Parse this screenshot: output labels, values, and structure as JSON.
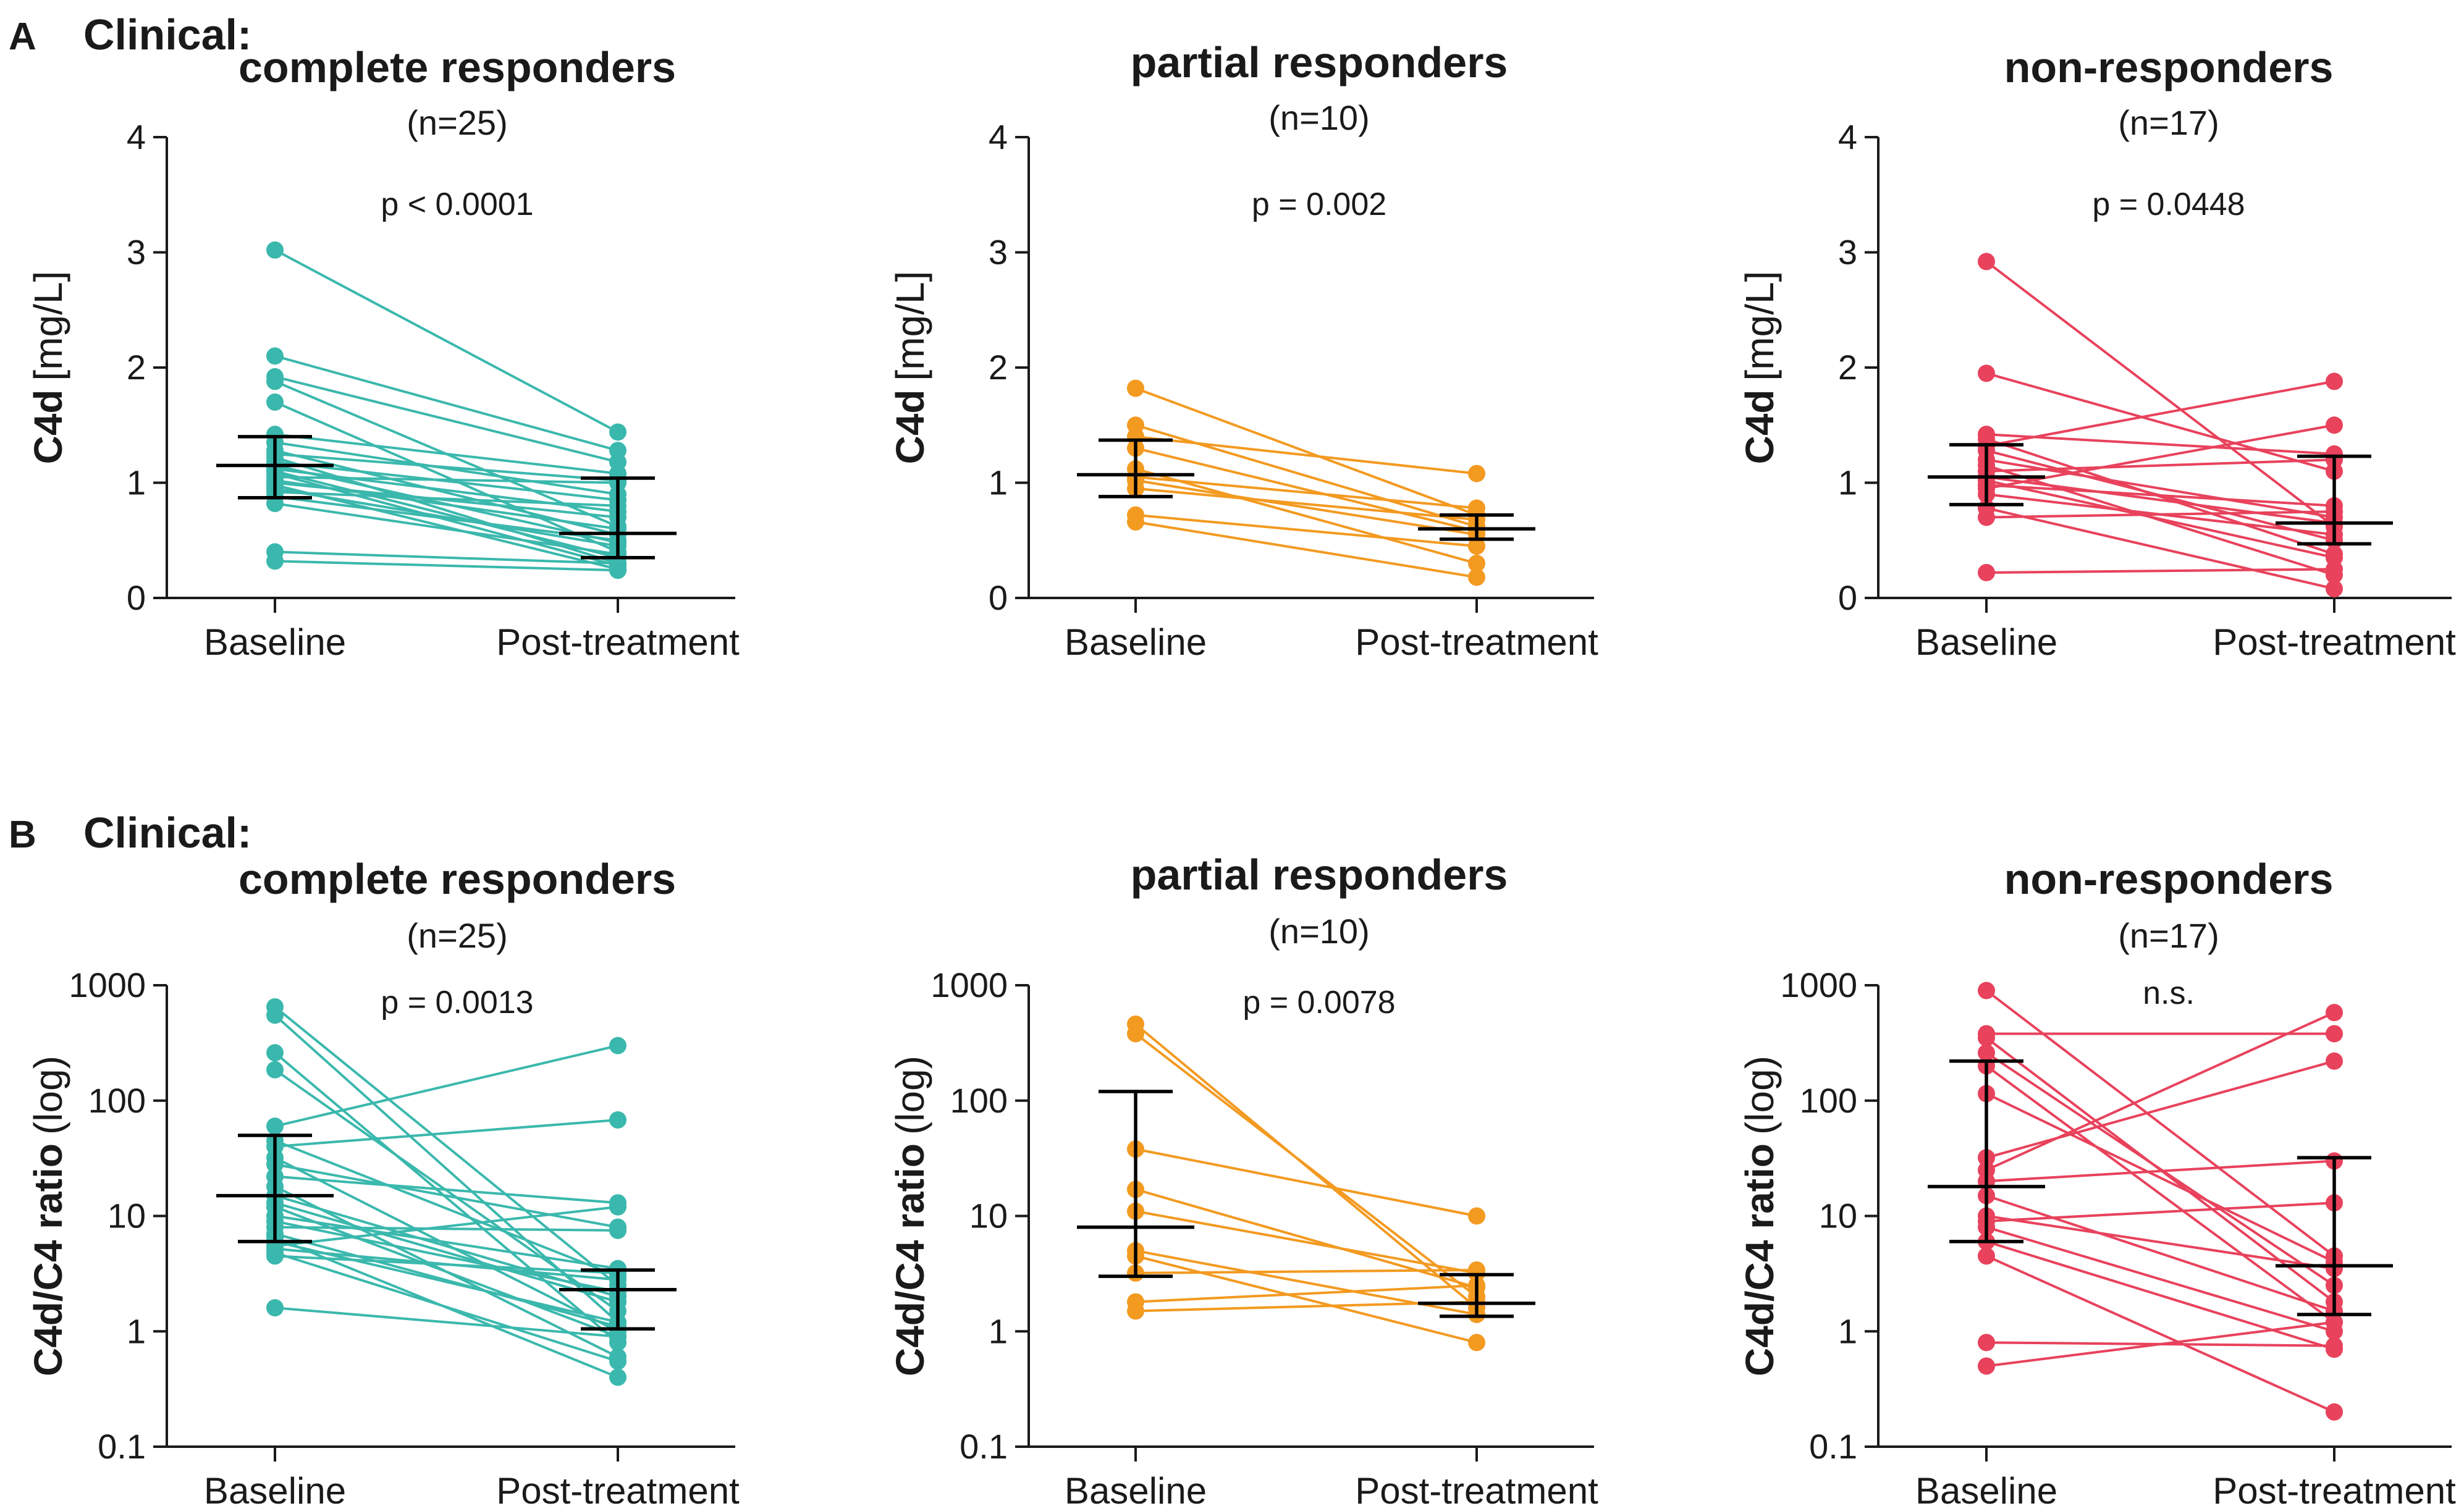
{
  "figure": {
    "panel_a": {
      "letter": "A",
      "heading": "Clinical:"
    },
    "panel_b": {
      "letter": "B",
      "heading": "Clinical:"
    }
  },
  "chart_data": [
    {
      "type": "paired_dot_line",
      "panel": "A",
      "title": "complete responders",
      "n_label": "(n=25)",
      "annotation": "p < 0.0001",
      "ylabel": "C4d [mg/L]",
      "ylabel_parts": [
        "C4d",
        "[mg/L]"
      ],
      "yscale": "linear",
      "ylim": [
        0,
        4
      ],
      "yticks": [
        0,
        1,
        2,
        3,
        4
      ],
      "ytick_labels": [
        "0",
        "1",
        "2",
        "3",
        "4"
      ],
      "categories": [
        "Baseline",
        "Post-treatment"
      ],
      "color": "#3bb8ad",
      "pairs": [
        [
          3.02,
          1.44
        ],
        [
          2.1,
          1.28
        ],
        [
          1.92,
          1.18
        ],
        [
          1.88,
          0.62
        ],
        [
          1.7,
          0.4
        ],
        [
          1.42,
          1.08
        ],
        [
          1.35,
          0.9
        ],
        [
          1.28,
          0.55
        ],
        [
          1.25,
          1.02
        ],
        [
          1.22,
          0.3
        ],
        [
          1.18,
          0.85
        ],
        [
          1.15,
          0.48
        ],
        [
          1.12,
          0.75
        ],
        [
          1.1,
          0.35
        ],
        [
          1.08,
          0.28
        ],
        [
          1.05,
          1.0
        ],
        [
          1.02,
          0.6
        ],
        [
          1.0,
          0.7
        ],
        [
          0.98,
          0.25
        ],
        [
          0.95,
          0.45
        ],
        [
          0.92,
          0.8
        ],
        [
          0.88,
          0.5
        ],
        [
          0.82,
          0.38
        ],
        [
          0.4,
          0.3
        ],
        [
          0.32,
          0.24
        ]
      ],
      "stats": [
        {
          "median": 1.15,
          "q1": 0.87,
          "q3": 1.4
        },
        {
          "median": 0.56,
          "q1": 0.35,
          "q3": 1.04
        }
      ]
    },
    {
      "type": "paired_dot_line",
      "panel": "A",
      "title": "partial responders",
      "n_label": "(n=10)",
      "annotation": "p = 0.002",
      "ylabel": "C4d [mg/L]",
      "ylabel_parts": [
        "C4d",
        "[mg/L]"
      ],
      "yscale": "linear",
      "ylim": [
        0,
        4
      ],
      "yticks": [
        0,
        1,
        2,
        3,
        4
      ],
      "ytick_labels": [
        "0",
        "1",
        "2",
        "3",
        "4"
      ],
      "categories": [
        "Baseline",
        "Post-treatment"
      ],
      "color": "#f39a21",
      "pairs": [
        [
          1.82,
          0.72
        ],
        [
          1.5,
          0.62
        ],
        [
          1.4,
          1.08
        ],
        [
          1.3,
          0.58
        ],
        [
          1.12,
          0.3
        ],
        [
          1.05,
          0.78
        ],
        [
          1.02,
          0.55
        ],
        [
          0.95,
          0.68
        ],
        [
          0.72,
          0.45
        ],
        [
          0.66,
          0.18
        ]
      ],
      "stats": [
        {
          "median": 1.07,
          "q1": 0.88,
          "q3": 1.37
        },
        {
          "median": 0.6,
          "q1": 0.51,
          "q3": 0.72
        }
      ]
    },
    {
      "type": "paired_dot_line",
      "panel": "A",
      "title": "non-responders",
      "n_label": "(n=17)",
      "annotation": "p = 0.0448",
      "ylabel": "C4d [mg/L]",
      "ylabel_parts": [
        "C4d",
        "[mg/L]"
      ],
      "yscale": "linear",
      "ylim": [
        0,
        4
      ],
      "yticks": [
        0,
        1,
        2,
        3,
        4
      ],
      "ytick_labels": [
        "0",
        "1",
        "2",
        "3",
        "4"
      ],
      "categories": [
        "Baseline",
        "Post-treatment"
      ],
      "color": "#e8425c",
      "pairs": [
        [
          2.92,
          0.62
        ],
        [
          1.95,
          1.1
        ],
        [
          1.42,
          1.25
        ],
        [
          1.38,
          0.38
        ],
        [
          1.32,
          1.88
        ],
        [
          1.28,
          0.5
        ],
        [
          1.2,
          0.7
        ],
        [
          1.15,
          0.2
        ],
        [
          1.1,
          1.2
        ],
        [
          1.05,
          0.65
        ],
        [
          1.02,
          0.35
        ],
        [
          0.98,
          0.8
        ],
        [
          0.95,
          1.5
        ],
        [
          0.9,
          0.55
        ],
        [
          0.78,
          0.08
        ],
        [
          0.7,
          0.75
        ],
        [
          0.22,
          0.25
        ]
      ],
      "stats": [
        {
          "median": 1.05,
          "q1": 0.81,
          "q3": 1.33
        },
        {
          "median": 0.65,
          "q1": 0.47,
          "q3": 1.23
        }
      ]
    },
    {
      "type": "paired_dot_line",
      "panel": "B",
      "title": "complete responders",
      "n_label": "(n=25)",
      "annotation": "p = 0.0013",
      "ylabel": "C4d/C4 ratio (log)",
      "ylabel_parts": [
        "C4d/C4 ratio",
        "(log)"
      ],
      "yscale": "log",
      "ylim": [
        0.1,
        1000
      ],
      "yticks": [
        0.1,
        1,
        10,
        100,
        1000
      ],
      "ytick_labels": [
        "0.1",
        "1",
        "10",
        "100",
        "1000"
      ],
      "categories": [
        "Baseline",
        "Post-treatment"
      ],
      "color": "#3bb8ad",
      "pairs": [
        [
          650,
          2.5
        ],
        [
          550,
          1.2
        ],
        [
          260,
          0.8
        ],
        [
          185,
          1.5
        ],
        [
          60,
          300
        ],
        [
          45,
          3.0
        ],
        [
          40,
          68
        ],
        [
          32,
          1.0
        ],
        [
          28,
          8.0
        ],
        [
          22,
          13
        ],
        [
          18,
          0.6
        ],
        [
          15,
          2.0
        ],
        [
          13,
          1.8
        ],
        [
          12,
          0.9
        ],
        [
          10,
          3.5
        ],
        [
          9,
          2.2
        ],
        [
          8,
          7.5
        ],
        [
          7,
          1.1
        ],
        [
          6.5,
          0.4
        ],
        [
          6,
          1.2
        ],
        [
          5.5,
          12
        ],
        [
          5.2,
          2.8
        ],
        [
          4.8,
          0.55
        ],
        [
          4.5,
          3.2
        ],
        [
          1.6,
          0.9
        ]
      ],
      "stats": [
        {
          "median": 15,
          "q1": 6,
          "q3": 50
        },
        {
          "median": 2.3,
          "q1": 1.05,
          "q3": 3.4
        }
      ]
    },
    {
      "type": "paired_dot_line",
      "panel": "B",
      "title": "partial responders",
      "n_label": "(n=10)",
      "annotation": "p = 0.0078",
      "ylabel": "C4d/C4 ratio (log)",
      "ylabel_parts": [
        "C4d/C4 ratio",
        "(log)"
      ],
      "yscale": "log",
      "ylim": [
        0.1,
        1000
      ],
      "yticks": [
        0.1,
        1,
        10,
        100,
        1000
      ],
      "ytick_labels": [
        "0.1",
        "1",
        "10",
        "100",
        "1000"
      ],
      "categories": [
        "Baseline",
        "Post-treatment"
      ],
      "color": "#f39a21",
      "pairs": [
        [
          460,
          1.6
        ],
        [
          380,
          2.0
        ],
        [
          38,
          10
        ],
        [
          17,
          2.4
        ],
        [
          11,
          3.2
        ],
        [
          5,
          1.4
        ],
        [
          4.5,
          0.8
        ],
        [
          3.2,
          3.4
        ],
        [
          1.8,
          2.5
        ],
        [
          1.5,
          1.8
        ]
      ],
      "stats": [
        {
          "median": 8,
          "q1": 3,
          "q3": 120
        },
        {
          "median": 1.75,
          "q1": 1.35,
          "q3": 3.1
        }
      ]
    },
    {
      "type": "paired_dot_line",
      "panel": "B",
      "title": "non-responders",
      "n_label": "(n=17)",
      "annotation": "n.s.",
      "ylabel": "C4d/C4 ratio (log)",
      "ylabel_parts": [
        "C4d/C4 ratio",
        "(log)"
      ],
      "yscale": "log",
      "ylim": [
        0.1,
        1000
      ],
      "yticks": [
        0.1,
        1,
        10,
        100,
        1000
      ],
      "ytick_labels": [
        "0.1",
        "1",
        "10",
        "100",
        "1000"
      ],
      "categories": [
        "Baseline",
        "Post-treatment"
      ],
      "color": "#e8425c",
      "pairs": [
        [
          900,
          4.5
        ],
        [
          380,
          380
        ],
        [
          350,
          1.8
        ],
        [
          260,
          2.5
        ],
        [
          200,
          1.2
        ],
        [
          115,
          4.0
        ],
        [
          32,
          220
        ],
        [
          25,
          580
        ],
        [
          20,
          30
        ],
        [
          15,
          1.5
        ],
        [
          10,
          3.5
        ],
        [
          9,
          13
        ],
        [
          8,
          1.0
        ],
        [
          6,
          0.7
        ],
        [
          4.5,
          0.2
        ],
        [
          0.8,
          0.75
        ],
        [
          0.5,
          1.2
        ]
      ],
      "stats": [
        {
          "median": 18,
          "q1": 6,
          "q3": 220
        },
        {
          "median": 3.7,
          "q1": 1.4,
          "q3": 32
        }
      ]
    }
  ]
}
